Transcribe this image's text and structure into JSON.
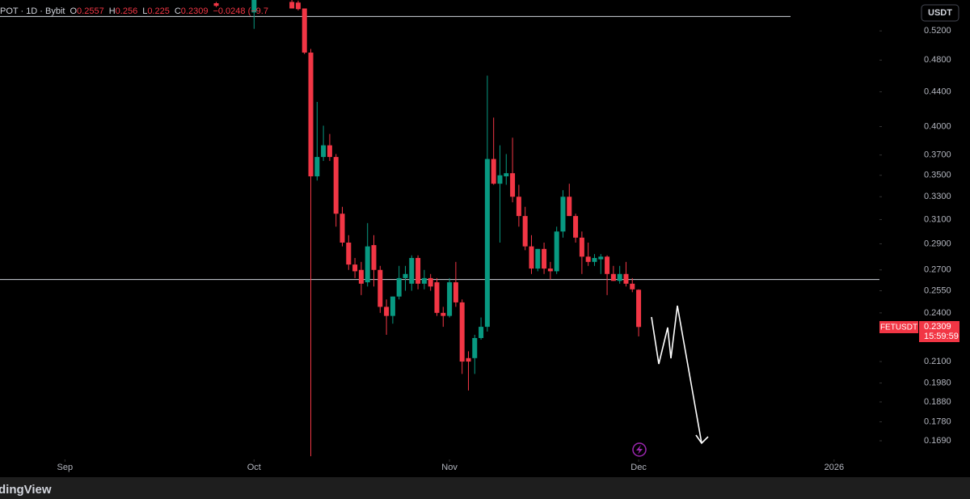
{
  "chart_data": {
    "type": "candlestick",
    "symbol": "POT · 1D · Bybit",
    "ohlc_labels": [
      "O",
      "H",
      "L",
      "C"
    ],
    "change": "−0.0248 (−9.7",
    "currency": "USDT",
    "last_label": "FETUSDT",
    "countdown": "15:59:59",
    "logo": "dingView",
    "log_scale": true,
    "up_color": "#089981",
    "down_color": "#f23645",
    "x": [
      24,
      30,
      36,
      37,
      38,
      39,
      40,
      41,
      42,
      43,
      44,
      45,
      46,
      47,
      48,
      49,
      50,
      51,
      52,
      53,
      54,
      55,
      56,
      57,
      58,
      59,
      60,
      61,
      62,
      63,
      64,
      65,
      66,
      67,
      68,
      69,
      70,
      71,
      72,
      73,
      74,
      75,
      76,
      77,
      78,
      79,
      80,
      81,
      82,
      83,
      84,
      85,
      86,
      87,
      88,
      89,
      90,
      91
    ],
    "open": [
      0.561,
      0.547,
      0.563,
      0.562,
      0.553,
      0.49,
      0.349,
      0.368,
      0.38,
      0.368,
      0.315,
      0.291,
      0.274,
      0.27,
      0.261,
      0.289,
      0.27,
      0.244,
      0.238,
      0.251,
      0.264,
      0.26,
      0.279,
      0.26,
      0.264,
      0.261,
      0.24,
      0.238,
      0.261,
      0.247,
      0.212,
      0.212,
      0.224,
      0.231,
      0.366,
      0.342,
      0.349,
      0.352,
      0.33,
      0.313,
      0.288,
      0.271,
      0.286,
      0.271,
      0.269,
      0.3,
      0.33,
      0.313,
      0.295,
      0.28,
      0.276,
      0.278,
      0.28,
      0.267,
      0.262,
      0.267,
      0.26,
      0.2557
    ],
    "high": [
      0.563,
      0.58,
      0.566,
      0.565,
      0.553,
      0.495,
      0.428,
      0.401,
      0.392,
      0.371,
      0.321,
      0.297,
      0.279,
      0.276,
      0.307,
      0.297,
      0.273,
      0.249,
      0.251,
      0.273,
      0.273,
      0.281,
      0.281,
      0.27,
      0.267,
      0.264,
      0.244,
      0.264,
      0.276,
      0.249,
      0.216,
      0.226,
      0.237,
      0.46,
      0.41,
      0.38,
      0.371,
      0.388,
      0.341,
      0.321,
      0.297,
      0.286,
      0.291,
      0.276,
      0.304,
      0.336,
      0.342,
      0.315,
      0.3,
      0.291,
      0.282,
      0.282,
      0.281,
      0.273,
      0.273,
      0.276,
      0.264,
      0.256
    ],
    "low": [
      0.555,
      0.523,
      0.553,
      0.55,
      0.488,
      0.162,
      0.345,
      0.364,
      0.364,
      0.304,
      0.288,
      0.27,
      0.264,
      0.252,
      0.258,
      0.258,
      0.24,
      0.226,
      0.233,
      0.249,
      0.255,
      0.255,
      0.256,
      0.256,
      0.255,
      0.238,
      0.231,
      0.237,
      0.244,
      0.203,
      0.194,
      0.203,
      0.223,
      0.228,
      0.341,
      0.291,
      0.341,
      0.325,
      0.304,
      0.285,
      0.267,
      0.269,
      0.267,
      0.263,
      0.267,
      0.295,
      0.313,
      0.291,
      0.267,
      0.273,
      0.273,
      0.267,
      0.252,
      0.262,
      0.26,
      0.258,
      0.254,
      0.225
    ],
    "close": [
      0.557,
      0.57,
      0.553,
      0.552,
      0.49,
      0.349,
      0.368,
      0.38,
      0.368,
      0.315,
      0.291,
      0.274,
      0.269,
      0.26,
      0.288,
      0.27,
      0.244,
      0.238,
      0.251,
      0.264,
      0.267,
      0.279,
      0.26,
      0.264,
      0.258,
      0.24,
      0.238,
      0.261,
      0.247,
      0.21,
      0.21,
      0.224,
      0.231,
      0.366,
      0.342,
      0.35,
      0.352,
      0.33,
      0.313,
      0.288,
      0.271,
      0.286,
      0.271,
      0.269,
      0.3,
      0.33,
      0.313,
      0.295,
      0.28,
      0.276,
      0.279,
      0.28,
      0.267,
      0.262,
      0.267,
      0.26,
      0.256,
      0.2309
    ],
    "levels": [
      0.541,
      0.263
    ],
    "level_color": "#d1d4dc",
    "ylim": [
      0.1606,
      0.566
    ],
    "yticks": [
      {
        "value": 0.52,
        "label": "0.5200"
      },
      {
        "value": 0.48,
        "label": "0.4800"
      },
      {
        "value": 0.44,
        "label": "0.4400"
      },
      {
        "value": 0.4,
        "label": "0.4000"
      },
      {
        "value": 0.37,
        "label": "0.3700"
      },
      {
        "value": 0.35,
        "label": "0.3500"
      },
      {
        "value": 0.33,
        "label": "0.3300"
      },
      {
        "value": 0.31,
        "label": "0.3100"
      },
      {
        "value": 0.29,
        "label": "0.2900"
      },
      {
        "value": 0.27,
        "label": "0.2700"
      },
      {
        "value": 0.255,
        "label": "0.2550"
      },
      {
        "value": 0.24,
        "label": "0.2400"
      },
      {
        "value": 0.21,
        "label": "0.2100"
      },
      {
        "value": 0.198,
        "label": "0.1980"
      },
      {
        "value": 0.188,
        "label": "0.1880"
      },
      {
        "value": 0.178,
        "label": "0.1780"
      },
      {
        "value": 0.169,
        "label": "0.1690"
      }
    ],
    "xlim": [
      -10.3,
      129.2
    ],
    "xticks": [
      {
        "value": 0,
        "label": "Sep"
      },
      {
        "value": 30,
        "label": "Oct"
      },
      {
        "value": 61,
        "label": "Nov"
      },
      {
        "value": 91,
        "label": "Dec"
      },
      {
        "value": 122,
        "label": "2026"
      }
    ]
  }
}
